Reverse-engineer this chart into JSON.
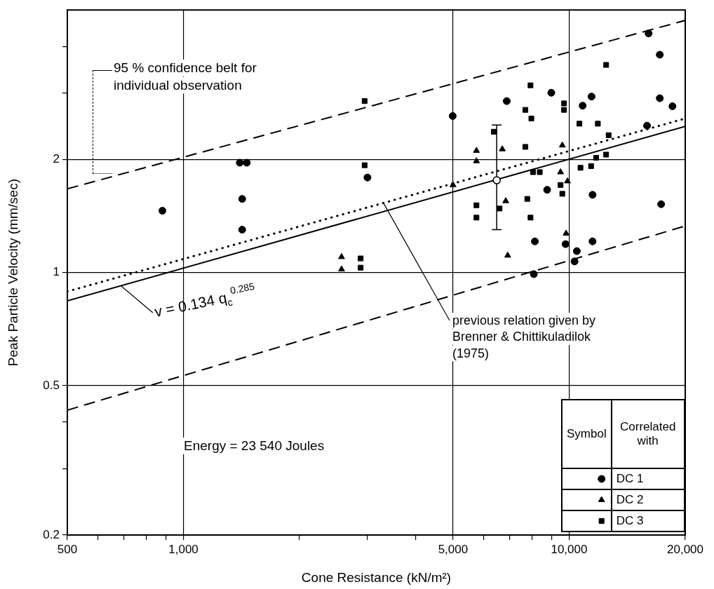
{
  "chart_data": {
    "type": "scatter",
    "xlabel": "Cone Resistance (kN/m²)",
    "ylabel": "Peak Particle Velocity (mm/sec)",
    "log": "xy",
    "xlim": [
      500,
      20000
    ],
    "ylim": [
      0.2,
      5
    ],
    "xticks": [
      500,
      {
        "value": 600,
        "label": null
      },
      {
        "value": 700,
        "label": null
      },
      {
        "value": 800,
        "label": null
      },
      {
        "value": 900,
        "label": null
      },
      {
        "value": 1000,
        "label": "1,000"
      },
      {
        "value": 2000,
        "label": null
      },
      {
        "value": 3000,
        "label": null
      },
      {
        "value": 4000,
        "label": null
      },
      {
        "value": 5000,
        "label": "5,000"
      },
      {
        "value": 6000,
        "label": null
      },
      {
        "value": 7000,
        "label": null
      },
      {
        "value": 8000,
        "label": null
      },
      {
        "value": 9000,
        "label": null
      },
      {
        "value": 10000,
        "label": "10,000"
      },
      {
        "value": 20000,
        "label": "20,000"
      }
    ],
    "yticks": [
      0.2,
      {
        "value": 0.3,
        "label": null
      },
      {
        "value": 0.4,
        "label": null
      },
      0.5,
      1,
      2,
      {
        "value": 3,
        "label": null
      },
      {
        "value": 4,
        "label": null
      }
    ],
    "grid": true,
    "legend": "bottom right",
    "legend_title": "Correlated with",
    "series": [
      {
        "name": "DC 1",
        "color": "#000000",
        "marker": "circle",
        "x": [
          882,
          1400,
          1460,
          1420,
          1420,
          3000,
          4990,
          6890,
          8990,
          11430,
          16070,
          17180,
          17180,
          18530,
          15920,
          10840,
          8770,
          11500,
          17320,
          8150,
          9790,
          11500,
          10470,
          10330,
          8100
        ],
        "values": [
          1.46,
          1.96,
          1.96,
          1.57,
          1.3,
          1.79,
          2.61,
          2.86,
          3.01,
          2.94,
          4.33,
          3.8,
          2.91,
          2.77,
          2.46,
          2.78,
          1.66,
          1.61,
          1.52,
          1.21,
          1.19,
          1.21,
          1.14,
          1.07,
          0.99
        ]
      },
      {
        "name": "DC 2",
        "color": "#000000",
        "marker": "triangle",
        "x": [
          2570,
          2570,
          5750,
          5750,
          5000,
          6710,
          9600,
          6850,
          9820,
          6930,
          9900,
          9500
        ],
        "values": [
          1.1,
          1.02,
          2.11,
          1.98,
          1.71,
          2.13,
          2.18,
          1.55,
          1.27,
          1.11,
          1.75,
          1.85
        ]
      },
      {
        "name": "DC 3",
        "color": "#000000",
        "marker": "square",
        "x": [
          2950,
          2950,
          2880,
          2880,
          5750,
          5750,
          7940,
          7700,
          7980,
          9700,
          9700,
          12470,
          10630,
          11870,
          12660,
          6380,
          7700,
          12470,
          8060,
          8390,
          7790,
          7940,
          6600,
          9500,
          9600,
          11750,
          11400,
          10700
        ],
        "values": [
          2.86,
          1.93,
          1.09,
          1.03,
          1.51,
          1.4,
          3.15,
          2.71,
          2.57,
          2.82,
          2.71,
          3.57,
          2.49,
          2.49,
          2.32,
          2.37,
          2.16,
          2.06,
          1.85,
          1.85,
          1.57,
          1.4,
          1.48,
          1.71,
          1.62,
          2.02,
          1.92,
          1.9
        ]
      },
      {
        "color": "#000000",
        "marker": "circle",
        "x": [
          6490
        ],
        "values": [
          1.76
        ],
        "errors": [
          [
            1.3,
            2.47
          ]
        ]
      },
      {
        "type": "line",
        "color": "#000000",
        "line_style": "dashed",
        "x": [
          500,
          20000
        ],
        "values": [
          1.67,
          4.69
        ]
      },
      {
        "type": "line",
        "color": "#000000",
        "line_style": "dashed",
        "x": [
          500,
          20000
        ],
        "values": [
          0.43,
          1.33
        ]
      },
      {
        "type": "line",
        "color": "#000000",
        "line_style": "solid",
        "x": [
          500,
          20000
        ],
        "values": [
          0.84,
          2.45
        ]
      },
      {
        "type": "line",
        "color": "#000000",
        "line_style": "dotted",
        "x": [
          500,
          20000
        ],
        "values": [
          0.89,
          2.57
        ]
      }
    ],
    "annotations": [
      "95 % confidence belt for individual observation",
      {
        "text": "v = 0.134 q$_{c}$$^{0.285}$",
        "x": 690,
        "y": 0.92
      },
      {
        "text": "previous relation given by Brenner & Chittikuladilok (1975)",
        "x": 3290,
        "y": 1.54
      },
      "Energy = 23 540 Joules",
      "Symbol"
    ]
  }
}
